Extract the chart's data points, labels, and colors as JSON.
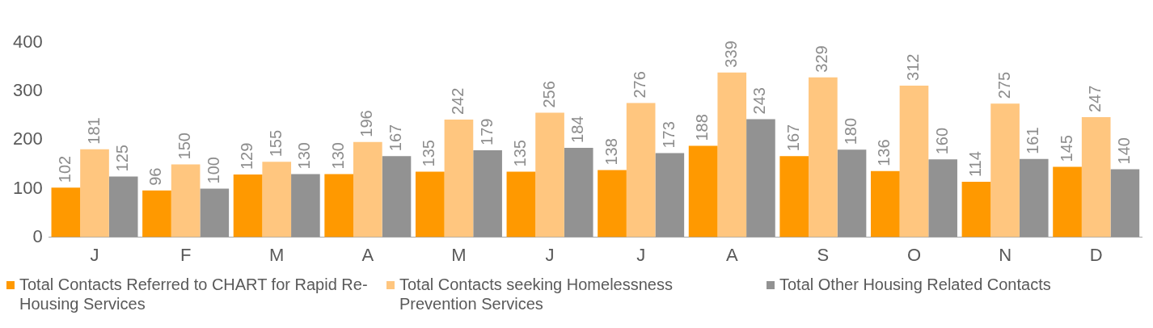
{
  "chart_data": {
    "type": "bar",
    "categories": [
      "J",
      "F",
      "M",
      "A",
      "M",
      "J",
      "J",
      "A",
      "S",
      "O",
      "N",
      "D"
    ],
    "series": [
      {
        "name": "Total Contacts Referred to CHART for Rapid Re-Housing Services",
        "color": "#ff9900",
        "values": [
          102,
          96,
          129,
          130,
          135,
          135,
          138,
          188,
          167,
          136,
          114,
          145
        ]
      },
      {
        "name": "Total Contacts seeking Homelessness Prevention Services",
        "color": "#ffc67f",
        "values": [
          181,
          150,
          155,
          196,
          242,
          256,
          276,
          339,
          329,
          312,
          275,
          247
        ]
      },
      {
        "name": "Total Other Housing Related Contacts",
        "color": "#929292",
        "values": [
          125,
          100,
          130,
          167,
          179,
          184,
          173,
          243,
          180,
          160,
          161,
          140
        ]
      }
    ],
    "ylim": [
      0,
      400
    ],
    "yticks": [
      0,
      100,
      200,
      300,
      400
    ],
    "grid": false,
    "legend": "bottom",
    "data_labels": true
  }
}
